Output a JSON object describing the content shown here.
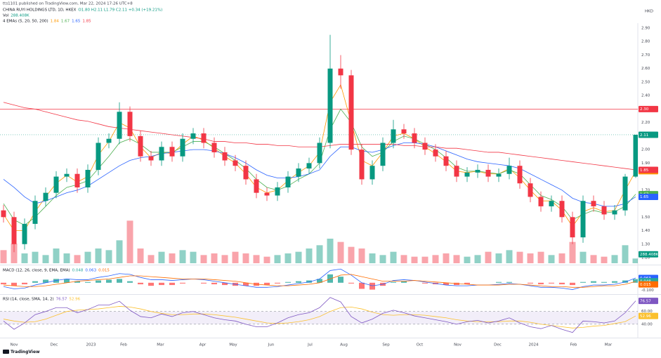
{
  "header": {
    "published": "tts1101 published on TradingView.com, Mar 22, 2024 17:26 UTC+8",
    "symbol": "CHINA RUYI HOLDINGS LTD, 1D, HKEX",
    "ohlc": "O1.80 H2.11 L1.79 C2.11 +0.34 (+19.21%)",
    "vol_label": "Vol",
    "ema_label": "4 EMAs (5, 20, 50, 200)",
    "currency": "HKD",
    "logo": "TradingView"
  },
  "chart_data": [
    {
      "type": "candlestick",
      "xlim": [
        0,
        60
      ],
      "xticks": [
        {
          "value": 1.0,
          "label": "Nov"
        },
        {
          "value": 4.8,
          "label": "Dec"
        },
        {
          "value": 8.3,
          "label": "2023"
        },
        {
          "value": 11.4,
          "label": "Feb"
        },
        {
          "value": 14.9,
          "label": "Mar"
        },
        {
          "value": 18.9,
          "label": "Apr"
        },
        {
          "value": 21.8,
          "label": "May"
        },
        {
          "value": 25.4,
          "label": "Jun"
        },
        {
          "value": 29.1,
          "label": "Jul"
        },
        {
          "value": 32.3,
          "label": "Aug"
        },
        {
          "value": 36.3,
          "label": "Sep"
        },
        {
          "value": 39.5,
          "label": "Oct"
        },
        {
          "value": 43.1,
          "label": "Nov"
        },
        {
          "value": 46.9,
          "label": "Dec"
        },
        {
          "value": 50.3,
          "label": "2024"
        },
        {
          "value": 54.1,
          "label": "Feb"
        },
        {
          "value": 57.4,
          "label": "Mar"
        }
      ],
      "ylim": [
        1.2,
        2.9
      ],
      "yticks": [
        {
          "value": 2.9,
          "label": "2.90"
        },
        {
          "value": 2.8,
          "label": "2.80"
        },
        {
          "value": 2.7,
          "label": "2.70"
        },
        {
          "value": 2.6,
          "label": "2.60"
        },
        {
          "value": 2.5,
          "label": "2.50"
        },
        {
          "value": 2.4,
          "label": "2.40"
        },
        {
          "value": 2.2,
          "label": "2.20"
        },
        {
          "value": 2.0,
          "label": "2.00"
        },
        {
          "value": 1.9,
          "label": "1.90"
        },
        {
          "value": 1.7,
          "label": "1.70"
        },
        {
          "value": 1.5,
          "label": "1.50"
        },
        {
          "value": 1.4,
          "label": "1.40"
        },
        {
          "value": 1.3,
          "label": "1.30"
        },
        {
          "value": 1.2,
          "label": "1.20"
        }
      ],
      "up_color": "#089981",
      "down_color": "#f23645",
      "open": [
        1.55,
        1.5,
        1.3,
        1.45,
        1.62,
        1.68,
        1.8,
        1.82,
        1.72,
        1.85,
        2.05,
        2.08,
        2.28,
        2.1,
        1.95,
        1.92,
        2.02,
        1.95,
        2.08,
        2.12,
        2.05,
        1.98,
        1.92,
        1.88,
        1.78,
        1.68,
        1.66,
        1.72,
        1.8,
        1.86,
        1.9,
        2.05,
        2.6,
        2.55,
        2.0,
        1.78,
        1.88,
        2.05,
        2.15,
        2.12,
        2.05,
        2.0,
        1.95,
        1.88,
        1.8,
        1.83,
        1.85,
        1.8,
        1.82,
        1.88,
        1.75,
        1.65,
        1.58,
        1.62,
        1.5,
        1.35,
        1.62,
        1.58,
        1.52,
        1.55,
        1.8
      ],
      "high": [
        1.59,
        1.54,
        1.49,
        1.66,
        1.72,
        1.84,
        1.86,
        1.86,
        1.89,
        2.09,
        2.12,
        2.35,
        2.32,
        2.14,
        1.99,
        2.06,
        2.06,
        2.12,
        2.16,
        2.16,
        2.09,
        2.02,
        1.96,
        1.92,
        1.82,
        1.72,
        1.76,
        1.84,
        1.9,
        1.94,
        2.09,
        2.85,
        2.7,
        2.59,
        2.04,
        1.92,
        2.09,
        2.22,
        2.19,
        2.16,
        2.09,
        2.04,
        1.99,
        1.92,
        1.87,
        1.89,
        1.89,
        1.86,
        1.94,
        1.92,
        1.79,
        1.69,
        1.66,
        1.66,
        1.54,
        1.66,
        1.66,
        1.62,
        1.59,
        1.82,
        2.11
      ],
      "low": [
        1.46,
        1.24,
        1.26,
        1.41,
        1.58,
        1.64,
        1.76,
        1.68,
        1.68,
        1.81,
        2.01,
        2.04,
        2.06,
        1.91,
        1.88,
        1.88,
        1.91,
        1.91,
        2.04,
        2.01,
        1.94,
        1.88,
        1.84,
        1.74,
        1.64,
        1.62,
        1.62,
        1.68,
        1.76,
        1.82,
        1.86,
        2.01,
        2.45,
        1.96,
        1.74,
        1.74,
        1.84,
        2.01,
        2.08,
        2.01,
        1.96,
        1.91,
        1.84,
        1.76,
        1.76,
        1.79,
        1.76,
        1.76,
        1.78,
        1.71,
        1.61,
        1.54,
        1.54,
        1.46,
        1.3,
        1.31,
        1.54,
        1.48,
        1.48,
        1.51,
        1.79
      ],
      "close": [
        1.5,
        1.3,
        1.45,
        1.62,
        1.68,
        1.8,
        1.82,
        1.72,
        1.85,
        2.05,
        2.08,
        2.28,
        2.1,
        1.95,
        1.92,
        2.02,
        1.95,
        2.08,
        2.12,
        2.05,
        1.98,
        1.92,
        1.88,
        1.78,
        1.68,
        1.66,
        1.72,
        1.8,
        1.86,
        1.9,
        2.05,
        2.6,
        2.55,
        2.0,
        1.78,
        1.88,
        2.05,
        2.15,
        2.12,
        2.05,
        2.0,
        1.95,
        1.88,
        1.8,
        1.83,
        1.85,
        1.8,
        1.82,
        1.88,
        1.75,
        1.65,
        1.58,
        1.62,
        1.5,
        1.35,
        1.62,
        1.58,
        1.52,
        1.55,
        1.8,
        2.11
      ],
      "close_label": "2.11",
      "volume": {
        "ylim": [
          0,
          3000
        ],
        "values": [
          800,
          1200,
          600,
          700,
          500,
          900,
          600,
          500,
          700,
          900,
          800,
          1400,
          2600,
          900,
          500,
          700,
          600,
          800,
          700,
          500,
          600,
          500,
          700,
          600,
          500,
          400,
          500,
          600,
          700,
          900,
          1100,
          1500,
          1300,
          1000,
          900,
          600,
          500,
          700,
          500,
          400,
          400,
          500,
          600,
          500,
          400,
          500,
          700,
          600,
          800,
          700,
          600,
          700,
          500,
          600,
          1300,
          700,
          500,
          400,
          500,
          1100,
          288.408
        ],
        "last_label": "288.408K",
        "color": "#089981"
      },
      "series": [
        {
          "color": "#ff9800",
          "last_label": "1.84",
          "values": [
            1.52,
            1.4,
            1.4,
            1.54,
            1.65,
            1.75,
            1.81,
            1.76,
            1.8,
            1.96,
            2.06,
            2.2,
            2.16,
            2.02,
            1.94,
            1.98,
            1.97,
            2.04,
            2.1,
            2.07,
            2.01,
            1.95,
            1.9,
            1.82,
            1.72,
            1.68,
            1.7,
            1.77,
            1.83,
            1.88,
            1.98,
            2.35,
            2.48,
            2.2,
            1.92,
            1.88,
            1.98,
            2.1,
            2.12,
            2.08,
            2.02,
            1.97,
            1.91,
            1.84,
            1.83,
            1.84,
            1.82,
            1.82,
            1.86,
            1.79,
            1.7,
            1.62,
            1.62,
            1.55,
            1.43,
            1.54,
            1.57,
            1.54,
            1.55,
            1.7,
            1.84
          ]
        },
        {
          "color": "#4caf50",
          "last_label": "1.67",
          "values": [
            1.6,
            1.48,
            1.44,
            1.5,
            1.58,
            1.66,
            1.72,
            1.74,
            1.77,
            1.86,
            1.95,
            2.05,
            2.08,
            2.04,
            1.98,
            1.98,
            1.98,
            2.02,
            2.06,
            2.06,
            2.02,
            1.97,
            1.92,
            1.86,
            1.78,
            1.72,
            1.7,
            1.73,
            1.78,
            1.82,
            1.9,
            2.15,
            2.3,
            2.2,
            2.02,
            1.95,
            1.98,
            2.06,
            2.1,
            2.08,
            2.04,
            2.0,
            1.94,
            1.87,
            1.84,
            1.84,
            1.83,
            1.82,
            1.85,
            1.82,
            1.74,
            1.66,
            1.63,
            1.58,
            1.48,
            1.52,
            1.55,
            1.53,
            1.54,
            1.58,
            1.67
          ]
        },
        {
          "color": "#2962ff",
          "last_label": "1.65",
          "values": [
            1.78,
            1.72,
            1.65,
            1.6,
            1.62,
            1.65,
            1.68,
            1.7,
            1.73,
            1.78,
            1.83,
            1.88,
            1.92,
            1.94,
            1.95,
            1.97,
            1.98,
            1.99,
            2.0,
            2.0,
            1.99,
            1.97,
            1.94,
            1.9,
            1.85,
            1.81,
            1.79,
            1.79,
            1.8,
            1.82,
            1.85,
            1.95,
            2.02,
            2.02,
            1.99,
            1.98,
            2.0,
            2.03,
            2.05,
            2.05,
            2.04,
            2.02,
            1.99,
            1.96,
            1.93,
            1.91,
            1.9,
            1.89,
            1.88,
            1.86,
            1.82,
            1.78,
            1.74,
            1.7,
            1.64,
            1.61,
            1.6,
            1.58,
            1.58,
            1.6,
            1.65
          ]
        },
        {
          "color": "#f23645",
          "last_label": "1.85",
          "values": [
            2.35,
            2.33,
            2.31,
            2.3,
            2.28,
            2.26,
            2.24,
            2.22,
            2.21,
            2.19,
            2.17,
            2.16,
            2.15,
            2.14,
            2.13,
            2.12,
            2.11,
            2.1,
            2.09,
            2.08,
            2.06,
            2.06,
            2.05,
            2.05,
            2.04,
            2.04,
            2.03,
            2.03,
            2.02,
            2.02,
            2.02,
            2.03,
            2.04,
            2.04,
            2.04,
            2.04,
            2.04,
            2.04,
            2.03,
            2.03,
            2.02,
            2.02,
            2.01,
            2.01,
            2.0,
            1.99,
            1.98,
            1.98,
            1.97,
            1.96,
            1.95,
            1.94,
            1.93,
            1.92,
            1.91,
            1.9,
            1.89,
            1.88,
            1.87,
            1.86,
            1.85
          ]
        }
      ],
      "hlines": [
        {
          "value": 2.3,
          "label": "2.30",
          "color": "#f23645"
        }
      ]
    },
    {
      "type": "macd",
      "title": "MACD (12, 26, close, 9, EMA, EMA)",
      "xlim": [
        0,
        60
      ],
      "ylim": [
        -0.14,
        0.21
      ],
      "yticks": [
        {
          "value": -0.1,
          "label": "-0.100"
        }
      ],
      "series": [
        {
          "color": "#2962ff",
          "values": [
            -0.05,
            -0.08,
            -0.07,
            -0.03,
            0,
            0.03,
            0.05,
            0.04,
            0.04,
            0.07,
            0.09,
            0.12,
            0.11,
            0.07,
            0.04,
            0.04,
            0.03,
            0.04,
            0.05,
            0.04,
            0.02,
            0,
            -0.02,
            -0.04,
            -0.06,
            -0.06,
            -0.05,
            -0.03,
            -0.01,
            0.01,
            0.05,
            0.16,
            0.18,
            0.1,
            0,
            -0.04,
            -0.02,
            0.03,
            0.04,
            0.03,
            0.01,
            -0.01,
            -0.03,
            -0.04,
            -0.04,
            -0.03,
            -0.03,
            -0.02,
            -0.01,
            -0.02,
            -0.04,
            -0.06,
            -0.06,
            -0.07,
            -0.09,
            -0.05,
            -0.03,
            -0.03,
            -0.02,
            0.01,
            0.063
          ]
        },
        {
          "color": "#ff6d00",
          "values": [
            -0.03,
            -0.04,
            -0.05,
            -0.05,
            -0.04,
            -0.02,
            0,
            0.02,
            0.03,
            0.04,
            0.05,
            0.07,
            0.09,
            0.09,
            0.08,
            0.07,
            0.06,
            0.05,
            0.05,
            0.05,
            0.04,
            0.03,
            0.02,
            0,
            -0.02,
            -0.03,
            -0.04,
            -0.04,
            -0.03,
            -0.02,
            0,
            0.05,
            0.1,
            0.11,
            0.08,
            0.05,
            0.02,
            0.02,
            0.02,
            0.03,
            0.02,
            0.01,
            0,
            -0.01,
            -0.02,
            -0.03,
            -0.03,
            -0.03,
            -0.02,
            -0.02,
            -0.03,
            -0.04,
            -0.05,
            -0.05,
            -0.06,
            -0.06,
            -0.05,
            -0.04,
            -0.04,
            -0.02,
            0.015
          ]
        }
      ],
      "histogram": {
        "up_color": "#26a69a",
        "down_color": "#ff5252",
        "values": [
          -0.02,
          -0.04,
          -0.02,
          0.02,
          0.04,
          0.05,
          0.05,
          0.02,
          0.01,
          0.03,
          0.04,
          0.05,
          0.02,
          -0.02,
          -0.04,
          -0.03,
          -0.03,
          -0.01,
          0,
          -0.01,
          -0.02,
          -0.03,
          -0.04,
          -0.04,
          -0.04,
          -0.03,
          -0.01,
          0.01,
          0.02,
          0.03,
          0.05,
          0.11,
          0.08,
          -0.01,
          -0.08,
          -0.09,
          -0.04,
          0.01,
          0.02,
          0,
          -0.01,
          -0.02,
          -0.03,
          -0.03,
          -0.02,
          0,
          0,
          0.01,
          0.01,
          0,
          -0.01,
          -0.02,
          -0.01,
          -0.02,
          -0.03,
          0.01,
          0.02,
          0.01,
          0.02,
          0.03,
          0.048
        ]
      }
    },
    {
      "type": "rsi",
      "title": "RSI (14, close, SMA, 14, 2)",
      "xlim": [
        0,
        60
      ],
      "ylim": [
        20,
        85
      ],
      "yticks": [
        {
          "value": 60,
          "label": "60.00"
        },
        {
          "value": 40,
          "label": "40.00"
        }
      ],
      "band_color": "#7e57c2",
      "series": [
        {
          "color": "#7e57c2",
          "values": [
            45,
            32,
            42,
            55,
            60,
            66,
            66,
            58,
            63,
            70,
            70,
            76,
            62,
            52,
            50,
            56,
            52,
            58,
            60,
            55,
            50,
            47,
            45,
            40,
            36,
            36,
            42,
            50,
            55,
            58,
            66,
            82,
            75,
            52,
            42,
            48,
            57,
            62,
            58,
            53,
            50,
            47,
            44,
            40,
            44,
            46,
            42,
            45,
            50,
            42,
            36,
            33,
            38,
            32,
            27,
            45,
            44,
            42,
            45,
            58,
            76.57
          ]
        },
        {
          "color": "#fbc02d",
          "values": [
            48,
            45,
            43,
            44,
            48,
            54,
            60,
            62,
            63,
            64,
            66,
            68,
            67,
            64,
            60,
            57,
            55,
            55,
            56,
            56,
            55,
            53,
            51,
            48,
            45,
            42,
            41,
            42,
            44,
            47,
            52,
            60,
            66,
            67,
            64,
            59,
            55,
            54,
            55,
            55,
            54,
            52,
            50,
            47,
            45,
            44,
            44,
            44,
            45,
            45,
            43,
            40,
            38,
            36,
            34,
            35,
            37,
            38,
            41,
            44,
            52.96
          ]
        }
      ]
    }
  ]
}
